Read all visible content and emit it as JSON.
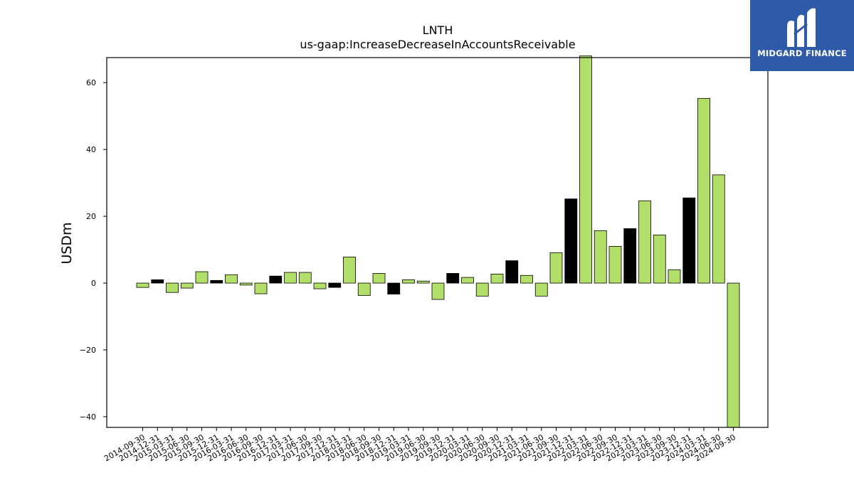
{
  "chart_data": {
    "type": "bar",
    "title": "LNTH",
    "subtitle": "us-gaap:IncreaseDecreaseInAccountsReceivable",
    "xlabel": "",
    "ylabel": "USDm",
    "ylim": [
      -43.2,
      67.5
    ],
    "yticks": [
      -40,
      -20,
      0,
      20,
      40,
      60
    ],
    "ytick_labels": [
      "−40",
      "−20",
      "0",
      "20",
      "40",
      "60"
    ],
    "grid": false,
    "legend": "none",
    "colors": {
      "positive_series": "#b2df6a",
      "alt": "#000000",
      "edge": "#000000"
    },
    "categories": [
      "2014-09-30",
      "2014-12-31",
      "2015-03-31",
      "2015-06-30",
      "2015-09-30",
      "2015-12-31",
      "2016-03-31",
      "2016-06-30",
      "2016-09-30",
      "2016-12-31",
      "2017-03-31",
      "2017-06-30",
      "2017-09-30",
      "2017-12-31",
      "2018-03-31",
      "2018-06-30",
      "2018-09-30",
      "2018-12-31",
      "2019-03-31",
      "2019-06-30",
      "2019-09-30",
      "2019-12-31",
      "2020-03-31",
      "2020-06-30",
      "2020-09-30",
      "2020-12-31",
      "2021-03-31",
      "2021-06-30",
      "2021-09-30",
      "2021-12-31",
      "2022-03-31",
      "2022-06-30",
      "2022-09-30",
      "2022-12-31",
      "2023-03-31",
      "2023-06-30",
      "2023-09-30",
      "2023-12-31",
      "2024-03-31",
      "2024-06-30",
      "2024-09-30"
    ],
    "values": [
      -1.3,
      1.0,
      -2.8,
      -1.5,
      3.4,
      0.8,
      2.5,
      -0.6,
      -3.2,
      2.1,
      3.2,
      3.2,
      -1.7,
      -1.3,
      7.8,
      -3.7,
      2.9,
      -3.3,
      1.0,
      0.6,
      -4.9,
      2.9,
      1.7,
      -3.9,
      2.7,
      6.7,
      2.3,
      -3.9,
      9.1,
      25.2,
      68.0,
      15.7,
      11.0,
      16.3,
      24.6,
      14.4,
      4.0,
      25.5,
      55.3,
      32.4,
      -43.2
    ],
    "bar_colors": [
      "green",
      "black",
      "green",
      "green",
      "green",
      "black",
      "green",
      "green",
      "green",
      "black",
      "green",
      "green",
      "green",
      "black",
      "green",
      "green",
      "green",
      "black",
      "green",
      "green",
      "green",
      "black",
      "green",
      "green",
      "green",
      "black",
      "green",
      "green",
      "green",
      "black",
      "green",
      "green",
      "green",
      "black",
      "green",
      "green",
      "green",
      "black",
      "green",
      "green",
      "green"
    ]
  },
  "branding": {
    "logo_text": "MIDGARD FINANCE",
    "logo_icon": "midgard-m-icon",
    "logo_color": "#2f5aa8"
  }
}
